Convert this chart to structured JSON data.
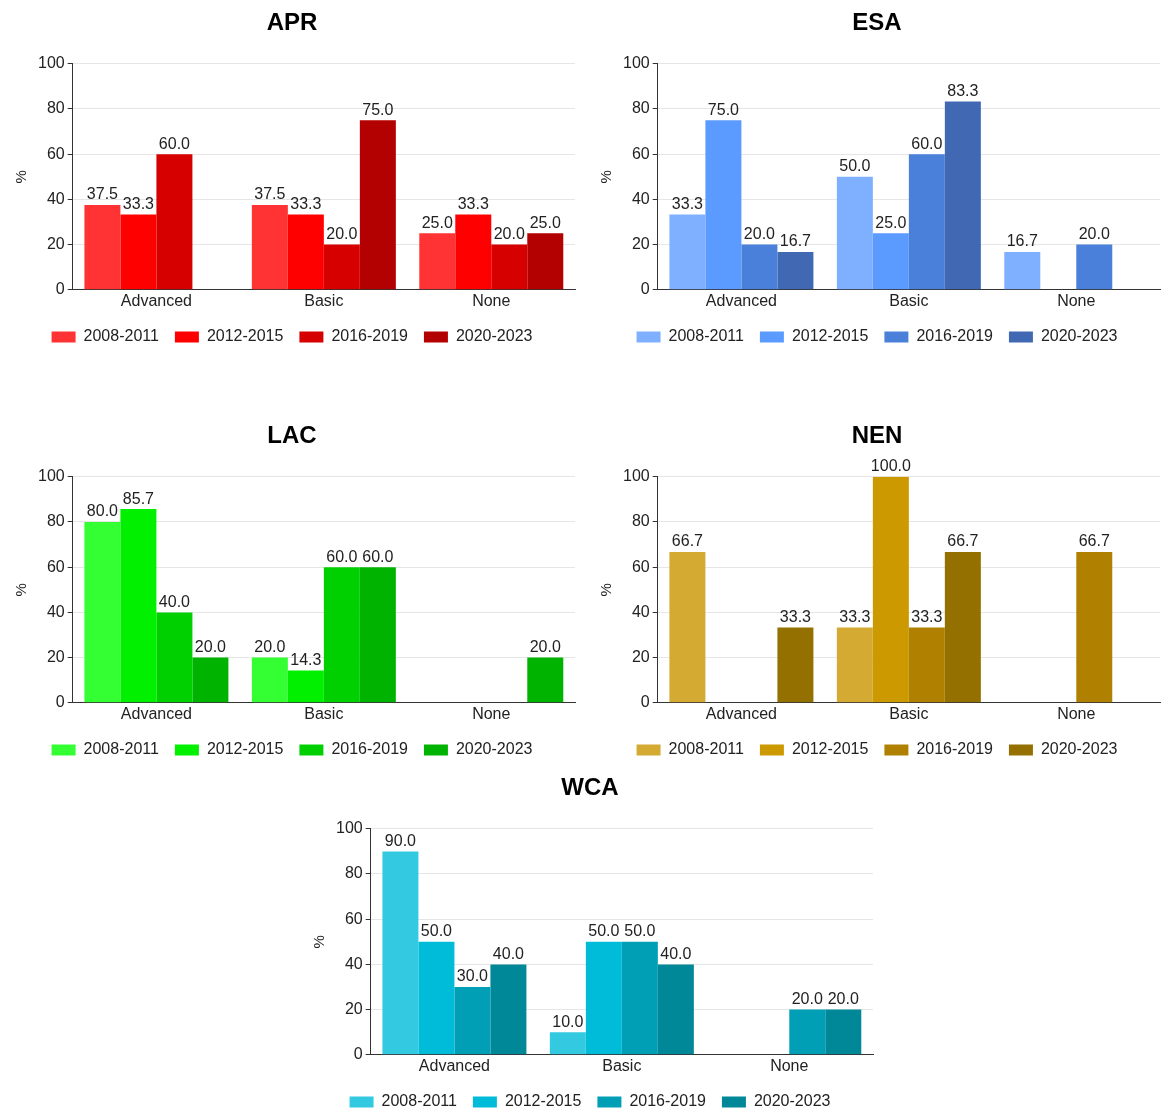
{
  "chart_data": [
    {
      "type": "bar",
      "title": "APR",
      "ylabel": "%",
      "categories": [
        "Advanced",
        "Basic",
        "None"
      ],
      "ylim": [
        0,
        100
      ],
      "yticks": [
        0,
        20,
        40,
        60,
        80,
        100
      ],
      "grid": "y",
      "legend": "bottom",
      "series": [
        {
          "name": "2008-2011",
          "color": "#ff3333",
          "values": [
            37.5,
            37.5,
            25.0
          ],
          "value_labels": [
            "37.5",
            "37.5",
            "25.0"
          ]
        },
        {
          "name": "2012-2015",
          "color": "#ff0000",
          "values": [
            33.3,
            33.3,
            33.3
          ],
          "value_labels": [
            "33.3",
            "33.3",
            "33.3"
          ]
        },
        {
          "name": "2016-2019",
          "color": "#d60000",
          "values": [
            60.0,
            20.0,
            20.0
          ],
          "value_labels": [
            "60.0",
            "20.0",
            "20.0"
          ]
        },
        {
          "name": "2020-2023",
          "color": "#b30000",
          "values": [
            null,
            75.0,
            25.0
          ],
          "value_labels": [
            null,
            "75.0",
            "25.0"
          ]
        }
      ]
    },
    {
      "type": "bar",
      "title": "ESA",
      "ylabel": "%",
      "categories": [
        "Advanced",
        "Basic",
        "None"
      ],
      "ylim": [
        0,
        100
      ],
      "yticks": [
        0,
        20,
        40,
        60,
        80,
        100
      ],
      "grid": "y",
      "legend": "bottom",
      "series": [
        {
          "name": "2008-2011",
          "color": "#7fb0ff",
          "values": [
            33.3,
            50.0,
            16.7
          ],
          "value_labels": [
            "33.3",
            "50.0",
            "16.7"
          ]
        },
        {
          "name": "2012-2015",
          "color": "#5b9bff",
          "values": [
            75.0,
            25.0,
            null
          ],
          "value_labels": [
            "75.0",
            "25.0",
            null
          ]
        },
        {
          "name": "2016-2019",
          "color": "#4a80d9",
          "values": [
            20.0,
            60.0,
            20.0
          ],
          "value_labels": [
            "20.0",
            "60.0",
            "20.0"
          ]
        },
        {
          "name": "2020-2023",
          "color": "#4169b3",
          "values": [
            16.7,
            83.3,
            null
          ],
          "value_labels": [
            "16.7",
            "83.3",
            null
          ]
        }
      ]
    },
    {
      "type": "bar",
      "title": "LAC",
      "ylabel": "%",
      "categories": [
        "Advanced",
        "Basic",
        "None"
      ],
      "ylim": [
        0,
        100
      ],
      "yticks": [
        0,
        20,
        40,
        60,
        80,
        100
      ],
      "grid": "y",
      "legend": "bottom",
      "series": [
        {
          "name": "2008-2011",
          "color": "#33ff33",
          "values": [
            80.0,
            20.0,
            null
          ],
          "value_labels": [
            "80.0",
            "20.0",
            null
          ]
        },
        {
          "name": "2012-2015",
          "color": "#00f000",
          "values": [
            85.7,
            14.3,
            null
          ],
          "value_labels": [
            "85.7",
            "14.3",
            null
          ]
        },
        {
          "name": "2016-2019",
          "color": "#00d000",
          "values": [
            40.0,
            60.0,
            null
          ],
          "value_labels": [
            "40.0",
            "60.0",
            null
          ]
        },
        {
          "name": "2020-2023",
          "color": "#00b300",
          "values": [
            20.0,
            60.0,
            20.0
          ],
          "value_labels": [
            "20.0",
            "60.0",
            "20.0"
          ]
        }
      ]
    },
    {
      "type": "bar",
      "title": "NEN",
      "ylabel": "%",
      "categories": [
        "Advanced",
        "Basic",
        "None"
      ],
      "ylim": [
        0,
        100
      ],
      "yticks": [
        0,
        20,
        40,
        60,
        80,
        100
      ],
      "grid": "y",
      "legend": "bottom",
      "series": [
        {
          "name": "2008-2011",
          "color": "#d4aa33",
          "values": [
            66.7,
            33.3,
            null
          ],
          "value_labels": [
            "66.7",
            "33.3",
            null
          ]
        },
        {
          "name": "2012-2015",
          "color": "#cc9900",
          "values": [
            null,
            100.0,
            null
          ],
          "value_labels": [
            null,
            "100.0",
            null
          ]
        },
        {
          "name": "2016-2019",
          "color": "#b08000",
          "values": [
            null,
            33.3,
            66.7
          ],
          "value_labels": [
            null,
            "33.3",
            "66.7"
          ]
        },
        {
          "name": "2020-2023",
          "color": "#937000",
          "values": [
            33.3,
            66.7,
            null
          ],
          "value_labels": [
            "33.3",
            "66.7",
            null
          ]
        }
      ]
    },
    {
      "type": "bar",
      "title": "WCA",
      "ylabel": "%",
      "categories": [
        "Advanced",
        "Basic",
        "None"
      ],
      "ylim": [
        0,
        100
      ],
      "yticks": [
        0,
        20,
        40,
        60,
        80,
        100
      ],
      "grid": "y",
      "legend": "bottom",
      "series": [
        {
          "name": "2008-2011",
          "color": "#33c9e0",
          "values": [
            90.0,
            10.0,
            null
          ],
          "value_labels": [
            "90.0",
            "10.0",
            null
          ]
        },
        {
          "name": "2012-2015",
          "color": "#00bcd8",
          "values": [
            50.0,
            50.0,
            null
          ],
          "value_labels": [
            "50.0",
            "50.0",
            null
          ]
        },
        {
          "name": "2016-2019",
          "color": "#009fb5",
          "values": [
            30.0,
            50.0,
            20.0
          ],
          "value_labels": [
            "30.0",
            "50.0",
            "20.0"
          ]
        },
        {
          "name": "2020-2023",
          "color": "#008898",
          "values": [
            40.0,
            40.0,
            20.0
          ],
          "value_labels": [
            "40.0",
            "40.0",
            "20.0"
          ]
        }
      ]
    }
  ]
}
